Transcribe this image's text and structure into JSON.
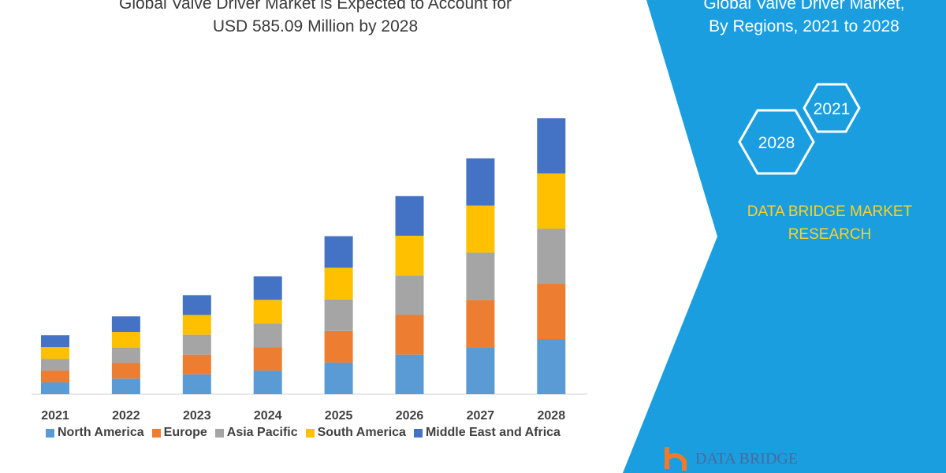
{
  "header": {
    "title_line1": "Global Valve Driver Market is Expected to Account for",
    "title_line2": "USD 585.09 Million by 2028"
  },
  "side_panel": {
    "title_line1": "Global Valve Driver Market,",
    "title_line2": "By Regions, 2021 to 2028",
    "hex_labels": [
      "2021",
      "2028"
    ],
    "brand_line1": "DATA BRIDGE MARKET",
    "brand_line2": "RESEARCH",
    "logo_text": "DATA BRIDGE",
    "color": "#1a9ee0"
  },
  "chart_data": {
    "type": "bar",
    "stacked": true,
    "grid": false,
    "legend": "bottom",
    "categories": [
      "2021",
      "2022",
      "2023",
      "2024",
      "2025",
      "2026",
      "2027",
      "2028"
    ],
    "series": [
      {
        "name": "North America",
        "color": "#5b9bd5",
        "values": [
          25,
          33,
          42,
          50,
          67,
          84,
          100,
          117
        ]
      },
      {
        "name": "Europe",
        "color": "#ed7d31",
        "values": [
          25,
          33,
          42,
          50,
          67,
          84,
          100,
          117
        ]
      },
      {
        "name": "Asia Pacific",
        "color": "#a5a5a5",
        "values": [
          25,
          33,
          42,
          50,
          67,
          84,
          100,
          117
        ]
      },
      {
        "name": "South America",
        "color": "#ffc000",
        "values": [
          25,
          33,
          42,
          50,
          67,
          84,
          100,
          117
        ]
      },
      {
        "name": "Middle East and Africa",
        "color": "#4472c4",
        "values": [
          25,
          33,
          42,
          50,
          67,
          84,
          100,
          117
        ]
      }
    ]
  }
}
